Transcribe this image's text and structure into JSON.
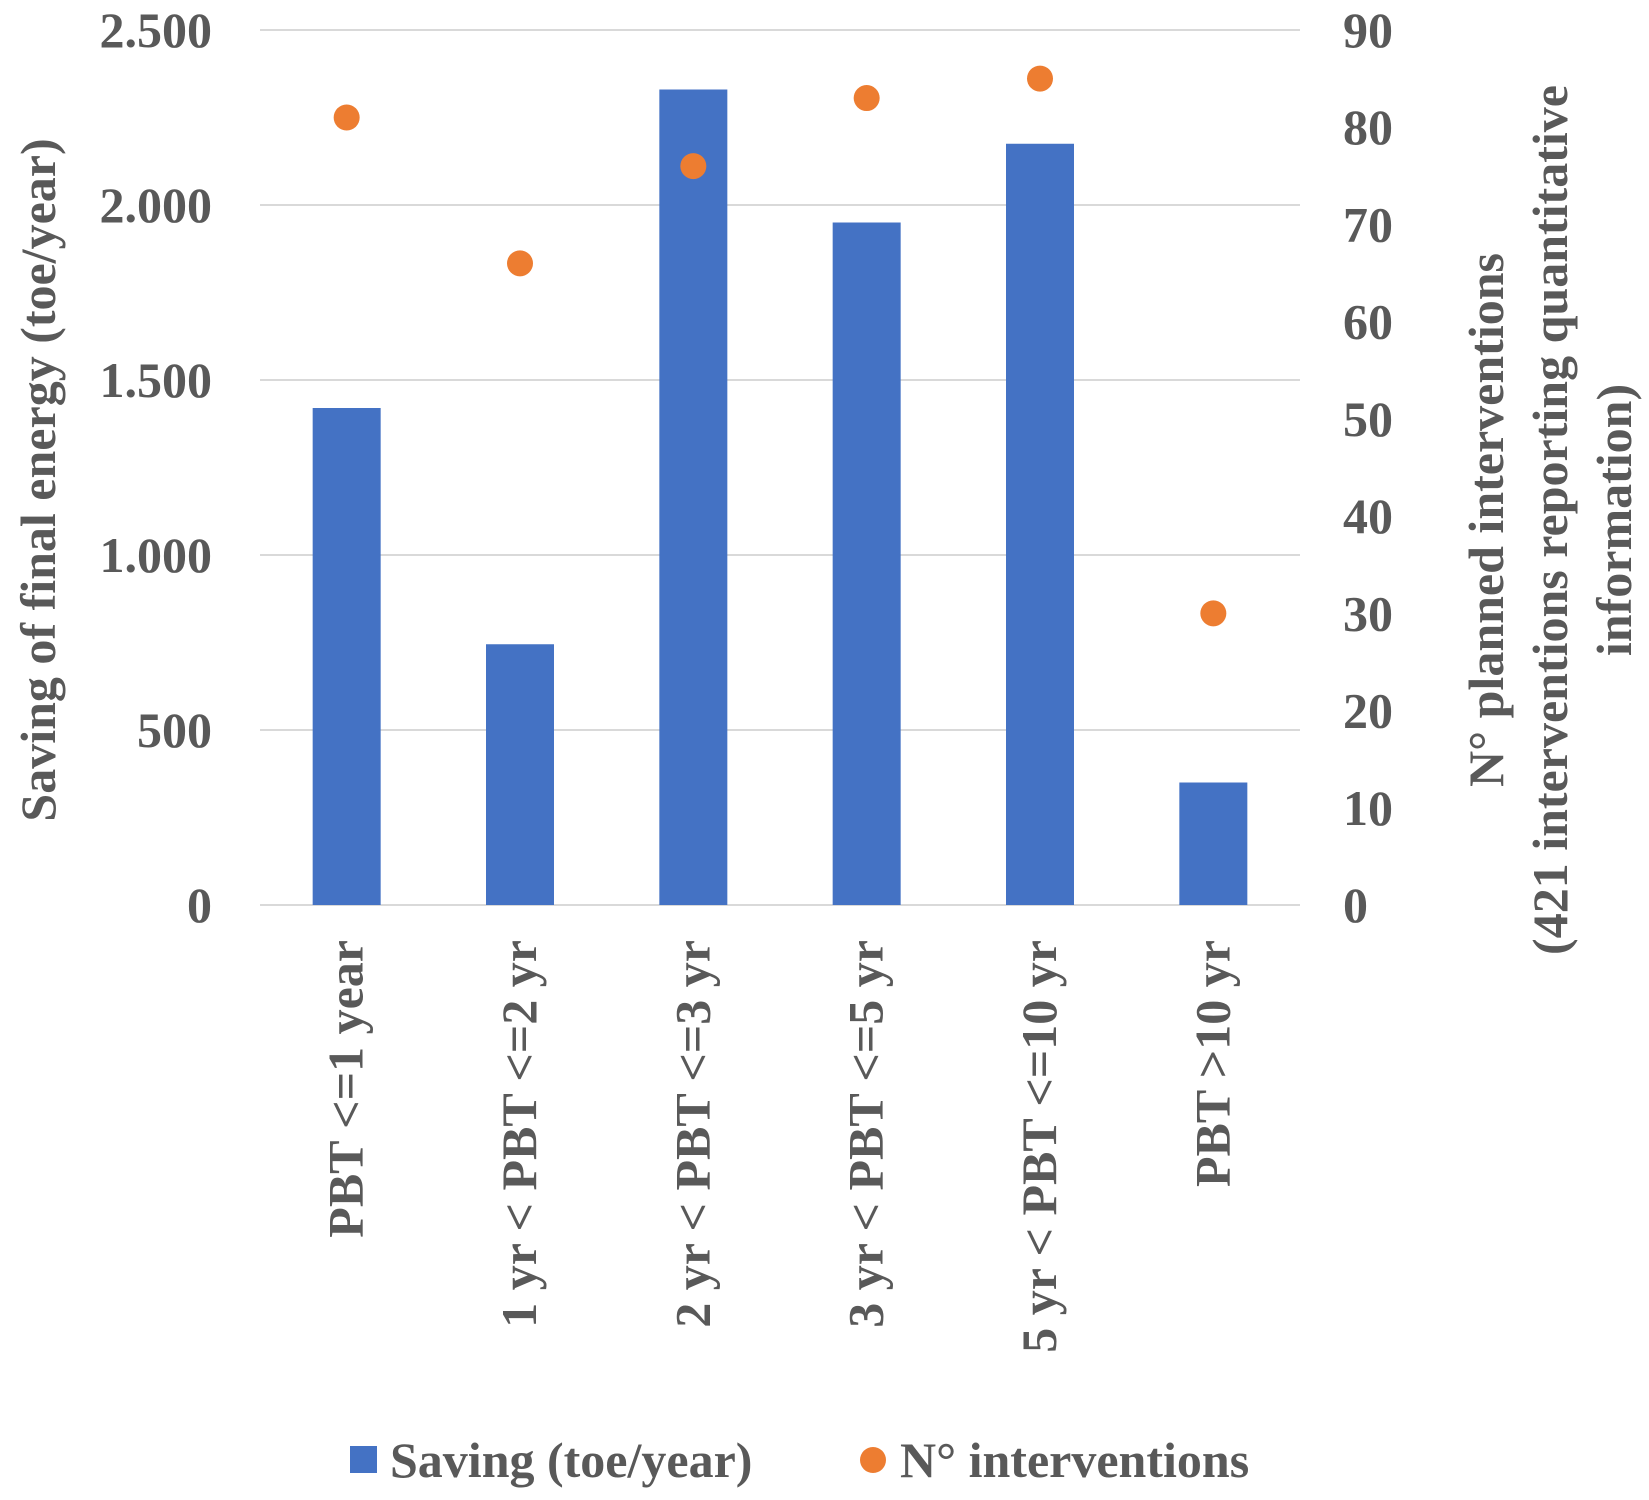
{
  "chart_data": {
    "type": "bar",
    "categories": [
      "PBT <=1  year",
      "1 yr < PBT <=2 yr",
      "2 yr < PBT <=3 yr",
      "3 yr < PBT <=5 yr",
      "5 yr < PBT <=10 yr",
      "PBT >10 yr"
    ],
    "series": [
      {
        "name": "Saving (toe/year)",
        "axis": "left",
        "kind": "bar",
        "color": "#4472c4",
        "values": [
          1420,
          745,
          2330,
          1950,
          2175,
          350
        ]
      },
      {
        "name": "N° interventions",
        "axis": "right",
        "kind": "scatter",
        "color": "#ed7d31",
        "values": [
          81,
          66,
          76,
          83,
          85,
          30
        ]
      }
    ],
    "y_left": {
      "label": "Saving of final energy (toe/year)",
      "lim": [
        0,
        2500
      ],
      "ticks": [
        0,
        500,
        1000,
        1500,
        2000,
        2500
      ],
      "tick_labels": [
        "0",
        "500",
        "1.000",
        "1.500",
        "2.000",
        "2.500"
      ]
    },
    "y_right": {
      "label_lines": [
        "N° planned interventions",
        "(421 interventions reporting quantitative",
        "information)"
      ],
      "lim": [
        0,
        90
      ],
      "ticks": [
        0,
        10,
        20,
        30,
        40,
        50,
        60,
        70,
        80,
        90
      ],
      "tick_labels": [
        "0",
        "10",
        "20",
        "30",
        "40",
        "50",
        "60",
        "70",
        "80",
        "90"
      ]
    },
    "grid": true,
    "legend": {
      "position": "bottom",
      "entries": [
        "Saving (toe/year)",
        "N° interventions"
      ]
    }
  }
}
